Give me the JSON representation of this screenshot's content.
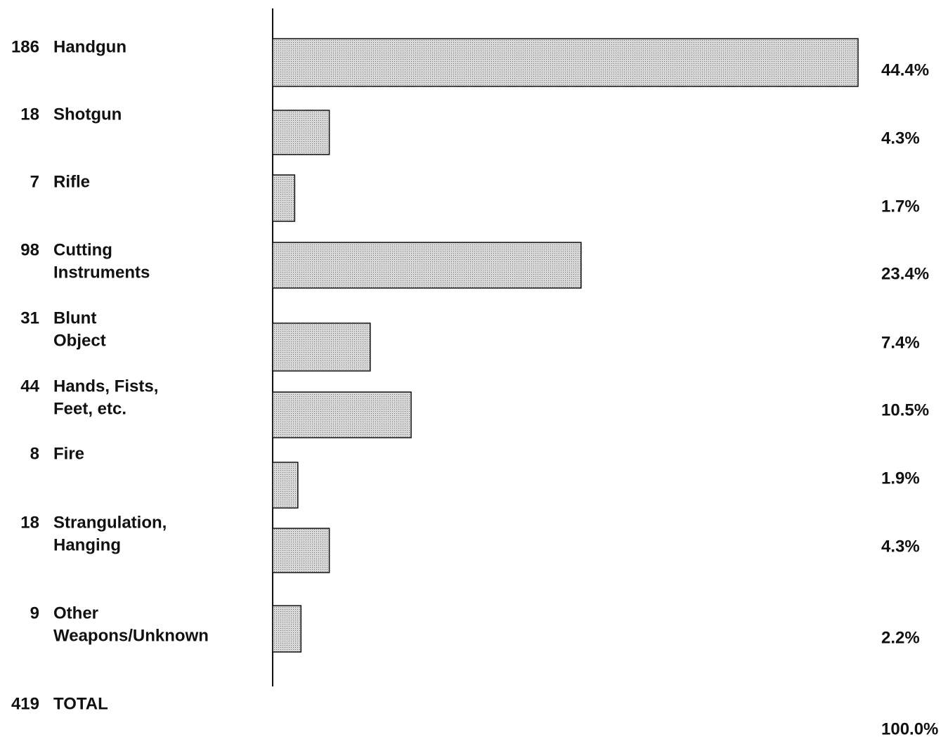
{
  "chart_data": {
    "type": "bar",
    "categories": [
      [
        "Handgun"
      ],
      [
        "Shotgun"
      ],
      [
        "Rifle"
      ],
      [
        "Cutting",
        "Instruments"
      ],
      [
        "Blunt",
        "Object"
      ],
      [
        "Hands, Fists,",
        "Feet, etc."
      ],
      [
        "Fire"
      ],
      [
        "Strangulation,",
        "Hanging"
      ],
      [
        "Other",
        "Weapons/Unknown"
      ]
    ],
    "values": [
      186,
      18,
      7,
      98,
      31,
      44,
      8,
      18,
      9
    ],
    "percentages": [
      44.4,
      4.3,
      1.7,
      23.4,
      7.4,
      10.5,
      1.9,
      4.3,
      2.2
    ],
    "percentage_labels": [
      "44.4%",
      "4.3%",
      "1.7%",
      "23.4%",
      "7.4%",
      "10.5%",
      "1.9%",
      "4.3%",
      "2.2%"
    ],
    "color": "#c4c4c4",
    "total": {
      "value": 419,
      "label": "TOTAL",
      "percentage": 100,
      "percentage_label": "100.0%"
    }
  }
}
